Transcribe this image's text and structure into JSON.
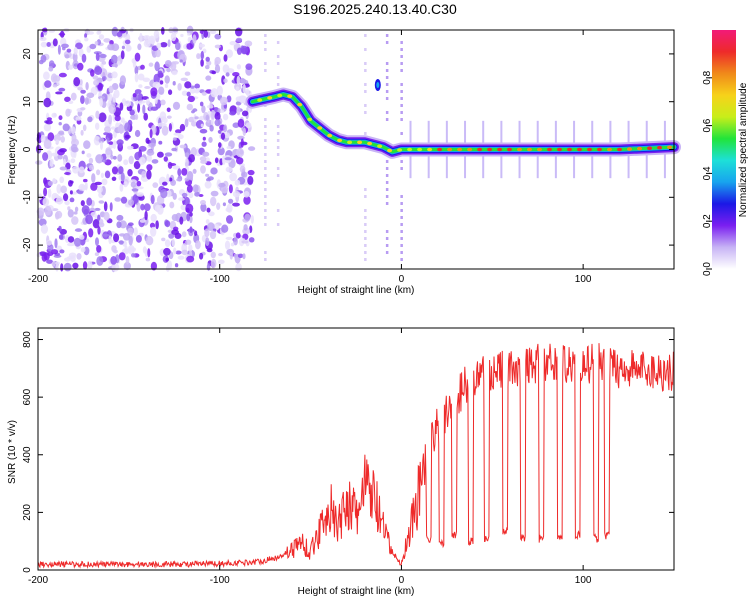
{
  "title": "S196.2025.240.13.40.C30",
  "chart_data": [
    {
      "type": "heatmap",
      "xlabel": "Height of straight line (km)",
      "ylabel": "Frequency (Hz)",
      "xlim": [
        -200,
        150
      ],
      "ylim": [
        -25,
        25
      ],
      "xticks": [
        -200,
        -100,
        0,
        100
      ],
      "yticks": [
        -20,
        -10,
        0,
        10,
        20
      ],
      "colorbar": {
        "label": "Normalized spectral amplitude",
        "range": [
          0,
          1
        ],
        "ticks": [
          "0.0",
          "0.2",
          "0.4",
          "0.6",
          "0.8"
        ],
        "colors": [
          "#ffffff",
          "#c7b3f5",
          "#7a1ff0",
          "#1b18e6",
          "#18a4ee",
          "#1de0d8",
          "#21e43a",
          "#c8ee1a",
          "#f7d21a",
          "#f08a1a",
          "#ee2a2a",
          "#f21a78"
        ]
      },
      "trace": {
        "name": "frequency ridge",
        "x": [
          -82,
          -76,
          -70,
          -65,
          -60,
          -55,
          -50,
          -45,
          -40,
          -35,
          -30,
          -25,
          -20,
          -15,
          -10,
          -5,
          0,
          10,
          20,
          40,
          60,
          80,
          100,
          120,
          150
        ],
        "y": [
          10,
          10.5,
          11,
          11.5,
          11,
          9,
          6,
          4.5,
          3,
          2,
          1.5,
          1.5,
          1.5,
          1,
          0.5,
          -0.5,
          0,
          0,
          0,
          0,
          0,
          0,
          0,
          0,
          0.5
        ]
      },
      "noise_region_x": [
        -200,
        -82
      ]
    },
    {
      "type": "line",
      "xlabel": "Height of straight line (km)",
      "ylabel": "SNR (10 * v/v)",
      "xlim": [
        -200,
        150
      ],
      "ylim": [
        0,
        840
      ],
      "xticks": [
        -200,
        -100,
        0,
        100
      ],
      "yticks": [
        0,
        200,
        400,
        600,
        800
      ],
      "color": "#ee2a2a",
      "x": [
        -200,
        -180,
        -160,
        -140,
        -120,
        -100,
        -80,
        -70,
        -60,
        -55,
        -50,
        -45,
        -40,
        -35,
        -30,
        -25,
        -20,
        -15,
        -10,
        -5,
        0,
        5,
        10,
        15,
        20,
        25,
        30,
        35,
        40,
        45,
        50,
        60,
        70,
        80,
        90,
        100,
        110,
        120,
        130,
        140,
        150
      ],
      "y": [
        20,
        20,
        20,
        20,
        20,
        22,
        28,
        40,
        70,
        100,
        60,
        140,
        230,
        140,
        250,
        180,
        290,
        250,
        140,
        60,
        20,
        150,
        280,
        420,
        500,
        540,
        580,
        650,
        650,
        680,
        690,
        700,
        710,
        720,
        720,
        710,
        720,
        700,
        700,
        690,
        690
      ],
      "dropouts": [
        {
          "x": 15,
          "y": 110
        },
        {
          "x": 22,
          "y": 90
        },
        {
          "x": 29,
          "y": 120
        },
        {
          "x": 38,
          "y": 100
        },
        {
          "x": 47,
          "y": 110
        },
        {
          "x": 57,
          "y": 130
        },
        {
          "x": 67,
          "y": 110
        },
        {
          "x": 77,
          "y": 110
        },
        {
          "x": 87,
          "y": 110
        },
        {
          "x": 97,
          "y": 120
        },
        {
          "x": 107,
          "y": 110
        },
        {
          "x": 113,
          "y": 120
        }
      ]
    }
  ]
}
